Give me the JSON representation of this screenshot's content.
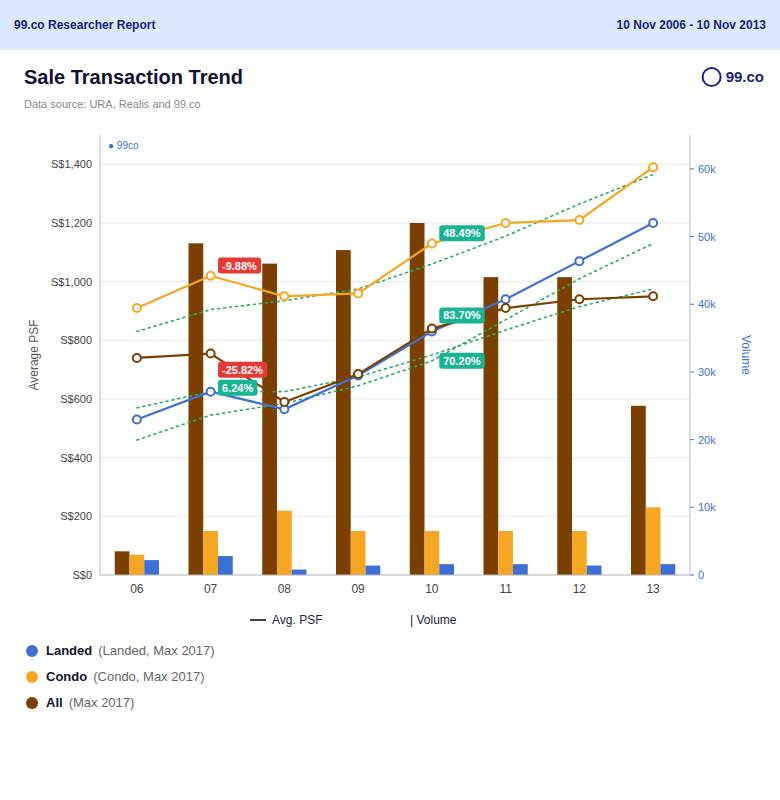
{
  "chart_data": {
    "type": "line",
    "title": "Sale Transaction Trend",
    "subtitle": "Data source: URA, Realis and 99.co",
    "header": [
      "99.co Researcher Report",
      "10 Nov 2006 - 10 Nov 2013"
    ],
    "logo": "99.co",
    "watermark": "● 99co",
    "categories": [
      "06",
      "07",
      "08",
      "09",
      "10",
      "11",
      "12",
      "13"
    ],
    "y_label": "Average PSF",
    "y2_label": "Volume",
    "ylim": [
      0,
      1500
    ],
    "yticks": [
      {
        "value": 0,
        "label": "S$0"
      },
      {
        "value": 200,
        "label": "S$200"
      },
      {
        "value": 400,
        "label": "S$400"
      },
      {
        "value": 600,
        "label": "S$600"
      },
      {
        "value": 800,
        "label": "S$800"
      },
      {
        "value": 1000,
        "label": "S$1,000"
      },
      {
        "value": 1200,
        "label": "S$1,200"
      },
      {
        "value": 1400,
        "label": "S$1,400"
      }
    ],
    "y2lim": [
      0,
      65000
    ],
    "y2ticks": [
      0,
      {
        "value": 10000,
        "label": "10k"
      },
      {
        "value": 20000,
        "label": "20k"
      },
      {
        "value": 30000,
        "label": "30k"
      },
      {
        "value": 40000,
        "label": "40k"
      },
      {
        "value": 50000,
        "label": "50k"
      },
      {
        "value": 60000,
        "label": "60k"
      }
    ],
    "grid": true,
    "legend": "bottom",
    "legend_titles": [
      "Avg. PSF",
      "| Volume"
    ],
    "series": [
      {
        "type": "bar",
        "axis": "y2",
        "color": "#7B3F00",
        "values": [
          3500,
          49000,
          46000,
          48000,
          52000,
          44000,
          44000,
          25000
        ]
      },
      {
        "type": "bar",
        "axis": "y2",
        "color": "#f5a623",
        "values": [
          3000,
          6500,
          9500,
          6500,
          6500,
          6500,
          6500,
          10000
        ]
      },
      {
        "type": "bar",
        "axis": "y2",
        "color": "#3d6fd4",
        "values": [
          2200,
          2800,
          800,
          1400,
          1600,
          1600,
          1400,
          1600
        ]
      },
      {
        "type": "line",
        "color": "#27ae60",
        "line_style": "dotted",
        "values": [
          460,
          545,
          585,
          645,
          730,
          870,
          1010,
          1130
        ]
      },
      {
        "type": "line",
        "color": "#27ae60",
        "line_style": "dotted",
        "values": [
          830,
          905,
          935,
          975,
          1060,
          1155,
          1265,
          1365
        ]
      },
      {
        "type": "line",
        "color": "#27ae60",
        "line_style": "dotted",
        "values": [
          570,
          625,
          625,
          675,
          750,
          835,
          915,
          975
        ]
      },
      {
        "type": "line",
        "name": "Landed",
        "legend_note": "(Landed, Max 2017)",
        "color": "#3d6fd4",
        "marker": "circle",
        "values": [
          530,
          625,
          565,
          680,
          830,
          940,
          1070,
          1200
        ]
      },
      {
        "type": "line",
        "name": "Condo",
        "legend_note": "(Condo, Max 2017)",
        "color": "#f5a623",
        "marker": "circle",
        "values": [
          910,
          1020,
          950,
          960,
          1130,
          1200,
          1210,
          1390
        ]
      },
      {
        "type": "line",
        "name": "All",
        "legend_note": "(Max 2017)",
        "color": "#7B3F00",
        "marker": "circle",
        "values": [
          740,
          755,
          590,
          685,
          840,
          910,
          940,
          950
        ]
      }
    ],
    "annotations": [
      {
        "text": "-9.88%",
        "x": "07",
        "y": 1055,
        "color": "#e53935"
      },
      {
        "text": "-25.82%",
        "x": "07",
        "y": 700,
        "color": "#e53935"
      },
      {
        "text": "6.24%",
        "x": "07",
        "y": 638,
        "color": "#1ab394"
      },
      {
        "text": "48.49%",
        "x": "10",
        "y": 1165,
        "color": "#1ab394"
      },
      {
        "text": "83.70%",
        "x": "10",
        "y": 885,
        "color": "#1ab394"
      },
      {
        "text": "70.20%",
        "x": "10",
        "y": 730,
        "color": "#1ab394"
      }
    ]
  }
}
